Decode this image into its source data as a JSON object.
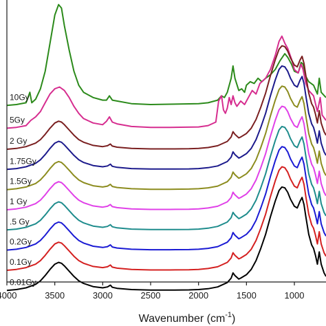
{
  "chart_data": {
    "type": "line",
    "title": "",
    "xlabel": "Wavenumber (cm",
    "xlabel_superscript": "-1",
    "xlabel_close": ")",
    "ylabel": "",
    "xlim": [
      4000,
      670
    ],
    "x_reversed": true,
    "x_ticks": [
      {
        "value": 4000,
        "label": "4000"
      },
      {
        "value": 3500,
        "label": "3500"
      },
      {
        "value": 3000,
        "label": "3000"
      },
      {
        "value": 2500,
        "label": "2500"
      },
      {
        "value": 2000,
        "label": "2000"
      },
      {
        "value": 1500,
        "label": "1500"
      },
      {
        "value": 1000,
        "label": "1000"
      }
    ],
    "y_ticks_shown": false,
    "grid": false,
    "legend": "none",
    "series": [
      {
        "name": "10Gy",
        "color": "#2b8a1a",
        "offset": 9.5,
        "points": [
          [
            4000,
            0.45
          ],
          [
            3900,
            0.5
          ],
          [
            3800,
            0.6
          ],
          [
            3760,
            1.2
          ],
          [
            3740,
            0.6
          ],
          [
            3700,
            0.8
          ],
          [
            3650,
            1.4
          ],
          [
            3600,
            2.4
          ],
          [
            3550,
            4.0
          ],
          [
            3500,
            5.6
          ],
          [
            3460,
            6.2
          ],
          [
            3430,
            6.0
          ],
          [
            3400,
            5.0
          ],
          [
            3350,
            3.6
          ],
          [
            3300,
            2.4
          ],
          [
            3250,
            1.6
          ],
          [
            3200,
            1.2
          ],
          [
            3100,
            0.9
          ],
          [
            3000,
            0.75
          ],
          [
            2960,
            0.75
          ],
          [
            2930,
            1.0
          ],
          [
            2900,
            0.75
          ],
          [
            2850,
            0.7
          ],
          [
            2700,
            0.55
          ],
          [
            2500,
            0.5
          ],
          [
            2300,
            0.52
          ],
          [
            2000,
            0.55
          ],
          [
            1900,
            0.6
          ],
          [
            1800,
            0.75
          ],
          [
            1760,
            1.0
          ],
          [
            1730,
            0.9
          ],
          [
            1700,
            1.2
          ],
          [
            1660,
            2.0
          ],
          [
            1640,
            2.7
          ],
          [
            1620,
            2.0
          ],
          [
            1580,
            1.3
          ],
          [
            1550,
            1.4
          ],
          [
            1520,
            1.2
          ],
          [
            1500,
            1.6
          ],
          [
            1460,
            1.8
          ],
          [
            1420,
            1.7
          ],
          [
            1380,
            2.0
          ],
          [
            1340,
            1.8
          ],
          [
            1300,
            2.0
          ],
          [
            1250,
            2.2
          ],
          [
            1200,
            2.5
          ],
          [
            1150,
            3.0
          ],
          [
            1100,
            3.4
          ],
          [
            1070,
            3.2
          ],
          [
            1030,
            2.8
          ],
          [
            1000,
            2.4
          ],
          [
            960,
            2.3
          ],
          [
            930,
            2.9
          ],
          [
            910,
            2.8
          ],
          [
            880,
            2.1
          ],
          [
            850,
            1.8
          ],
          [
            800,
            1.6
          ],
          [
            760,
            1.1
          ],
          [
            740,
            2.0
          ],
          [
            720,
            1.2
          ],
          [
            670,
            0.9
          ]
        ]
      },
      {
        "name": "5Gy",
        "color": "#d62d8f",
        "offset": 8.2,
        "points": [
          [
            4000,
            0.45
          ],
          [
            3900,
            0.5
          ],
          [
            3800,
            0.6
          ],
          [
            3750,
            0.9
          ],
          [
            3700,
            1.1
          ],
          [
            3650,
            1.4
          ],
          [
            3600,
            1.9
          ],
          [
            3550,
            2.4
          ],
          [
            3500,
            2.7
          ],
          [
            3450,
            2.8
          ],
          [
            3400,
            2.6
          ],
          [
            3350,
            2.2
          ],
          [
            3300,
            1.7
          ],
          [
            3250,
            1.3
          ],
          [
            3200,
            1.0
          ],
          [
            3100,
            0.75
          ],
          [
            3000,
            0.65
          ],
          [
            2960,
            0.85
          ],
          [
            2930,
            1.1
          ],
          [
            2900,
            0.8
          ],
          [
            2850,
            0.7
          ],
          [
            2700,
            0.55
          ],
          [
            2500,
            0.5
          ],
          [
            2300,
            0.5
          ],
          [
            2000,
            0.52
          ],
          [
            1900,
            0.6
          ],
          [
            1820,
            0.8
          ],
          [
            1790,
            2.0
          ],
          [
            1760,
            2.3
          ],
          [
            1740,
            1.5
          ],
          [
            1720,
            1.3
          ],
          [
            1700,
            1.6
          ],
          [
            1680,
            2.2
          ],
          [
            1660,
            1.8
          ],
          [
            1640,
            2.3
          ],
          [
            1620,
            1.9
          ],
          [
            1600,
            1.7
          ],
          [
            1560,
            2.0
          ],
          [
            1520,
            1.8
          ],
          [
            1480,
            2.2
          ],
          [
            1440,
            2.6
          ],
          [
            1400,
            2.4
          ],
          [
            1360,
            3.0
          ],
          [
            1300,
            3.3
          ],
          [
            1250,
            3.8
          ],
          [
            1200,
            4.6
          ],
          [
            1160,
            5.4
          ],
          [
            1130,
            5.7
          ],
          [
            1100,
            5.3
          ],
          [
            1070,
            5.0
          ],
          [
            1030,
            4.4
          ],
          [
            1000,
            3.8
          ],
          [
            960,
            3.6
          ],
          [
            930,
            4.1
          ],
          [
            910,
            3.8
          ],
          [
            880,
            3.0
          ],
          [
            850,
            2.6
          ],
          [
            800,
            2.3
          ],
          [
            760,
            1.4
          ],
          [
            730,
            2.2
          ],
          [
            710,
            1.2
          ],
          [
            670,
            0.9
          ]
        ]
      },
      {
        "name": "2 Gy",
        "color": "#7a1f20",
        "offset": 7.05
      },
      {
        "name": "1.75Gy",
        "color": "#1c1a8c",
        "offset": 5.9
      },
      {
        "name": "1.5Gy",
        "color": "#8c8c1e",
        "offset": 4.75
      },
      {
        "name": "1 Gy",
        "color": "#e040e8",
        "offset": 3.6
      },
      {
        "name": ".5 Gy",
        "color": "#1e8c8c",
        "offset": 2.45
      },
      {
        "name": "0.2Gy",
        "color": "#1a1ad4",
        "offset": 1.3
      },
      {
        "name": "0.1Gy",
        "color": "#d42020",
        "offset": 0.15
      },
      {
        "name": "0.01Gy",
        "color": "#000000",
        "offset": -1.0
      }
    ],
    "standard_profile": [
      [
        4000,
        0.4
      ],
      [
        3900,
        0.45
      ],
      [
        3800,
        0.55
      ],
      [
        3700,
        0.75
      ],
      [
        3650,
        0.95
      ],
      [
        3600,
        1.25
      ],
      [
        3550,
        1.6
      ],
      [
        3500,
        1.9
      ],
      [
        3460,
        2.0
      ],
      [
        3430,
        1.95
      ],
      [
        3400,
        1.8
      ],
      [
        3350,
        1.5
      ],
      [
        3300,
        1.2
      ],
      [
        3250,
        0.95
      ],
      [
        3200,
        0.8
      ],
      [
        3100,
        0.62
      ],
      [
        3000,
        0.55
      ],
      [
        2950,
        0.6
      ],
      [
        2920,
        0.7
      ],
      [
        2900,
        0.58
      ],
      [
        2850,
        0.52
      ],
      [
        2700,
        0.45
      ],
      [
        2500,
        0.42
      ],
      [
        2300,
        0.42
      ],
      [
        2100,
        0.43
      ],
      [
        2000,
        0.45
      ],
      [
        1900,
        0.5
      ],
      [
        1800,
        0.6
      ],
      [
        1700,
        0.85
      ],
      [
        1660,
        1.1
      ],
      [
        1640,
        1.4
      ],
      [
        1620,
        1.25
      ],
      [
        1580,
        1.05
      ],
      [
        1560,
        1.1
      ],
      [
        1500,
        1.3
      ],
      [
        1450,
        1.6
      ],
      [
        1400,
        2.1
      ],
      [
        1350,
        2.8
      ],
      [
        1300,
        3.6
      ],
      [
        1250,
        4.6
      ],
      [
        1200,
        5.5
      ],
      [
        1160,
        6.1
      ],
      [
        1130,
        6.3
      ],
      [
        1100,
        6.25
      ],
      [
        1070,
        6.0
      ],
      [
        1040,
        5.6
      ],
      [
        1000,
        5.2
      ],
      [
        970,
        5.1
      ],
      [
        940,
        5.5
      ],
      [
        920,
        5.7
      ],
      [
        900,
        5.3
      ],
      [
        880,
        4.6
      ],
      [
        850,
        3.6
      ],
      [
        820,
        3.0
      ],
      [
        800,
        2.8
      ],
      [
        780,
        2.4
      ],
      [
        760,
        1.9
      ],
      [
        740,
        2.6
      ],
      [
        720,
        1.9
      ],
      [
        690,
        1.4
      ],
      [
        670,
        1.2
      ]
    ]
  }
}
